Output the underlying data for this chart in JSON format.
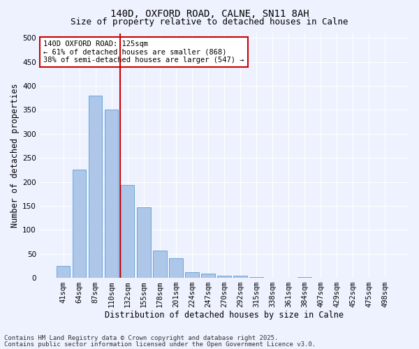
{
  "title": "140D, OXFORD ROAD, CALNE, SN11 8AH",
  "subtitle": "Size of property relative to detached houses in Calne",
  "xlabel": "Distribution of detached houses by size in Calne",
  "ylabel": "Number of detached properties",
  "categories": [
    "41sqm",
    "64sqm",
    "87sqm",
    "110sqm",
    "132sqm",
    "155sqm",
    "178sqm",
    "201sqm",
    "224sqm",
    "247sqm",
    "270sqm",
    "292sqm",
    "315sqm",
    "338sqm",
    "361sqm",
    "384sqm",
    "407sqm",
    "429sqm",
    "452sqm",
    "475sqm",
    "498sqm"
  ],
  "values": [
    25,
    225,
    380,
    350,
    193,
    147,
    57,
    41,
    12,
    8,
    5,
    4,
    1,
    0,
    0,
    1,
    0,
    0,
    0,
    0,
    0
  ],
  "bar_color": "#aec6e8",
  "bar_edge_color": "#5a9fd4",
  "vline_color": "#cc0000",
  "vline_x": 3.55,
  "annotation_text": "140D OXFORD ROAD: 125sqm\n← 61% of detached houses are smaller (868)\n38% of semi-detached houses are larger (547) →",
  "annotation_box_color": "#ffffff",
  "annotation_box_edge": "#cc0000",
  "ylim": [
    0,
    510
  ],
  "yticks": [
    0,
    50,
    100,
    150,
    200,
    250,
    300,
    350,
    400,
    450,
    500
  ],
  "background_color": "#eef2ff",
  "grid_color": "#ffffff",
  "footer_line1": "Contains HM Land Registry data © Crown copyright and database right 2025.",
  "footer_line2": "Contains public sector information licensed under the Open Government Licence v3.0.",
  "title_fontsize": 10,
  "subtitle_fontsize": 9,
  "axis_label_fontsize": 8.5,
  "tick_fontsize": 7.5,
  "annotation_fontsize": 7.5,
  "footer_fontsize": 6.5
}
